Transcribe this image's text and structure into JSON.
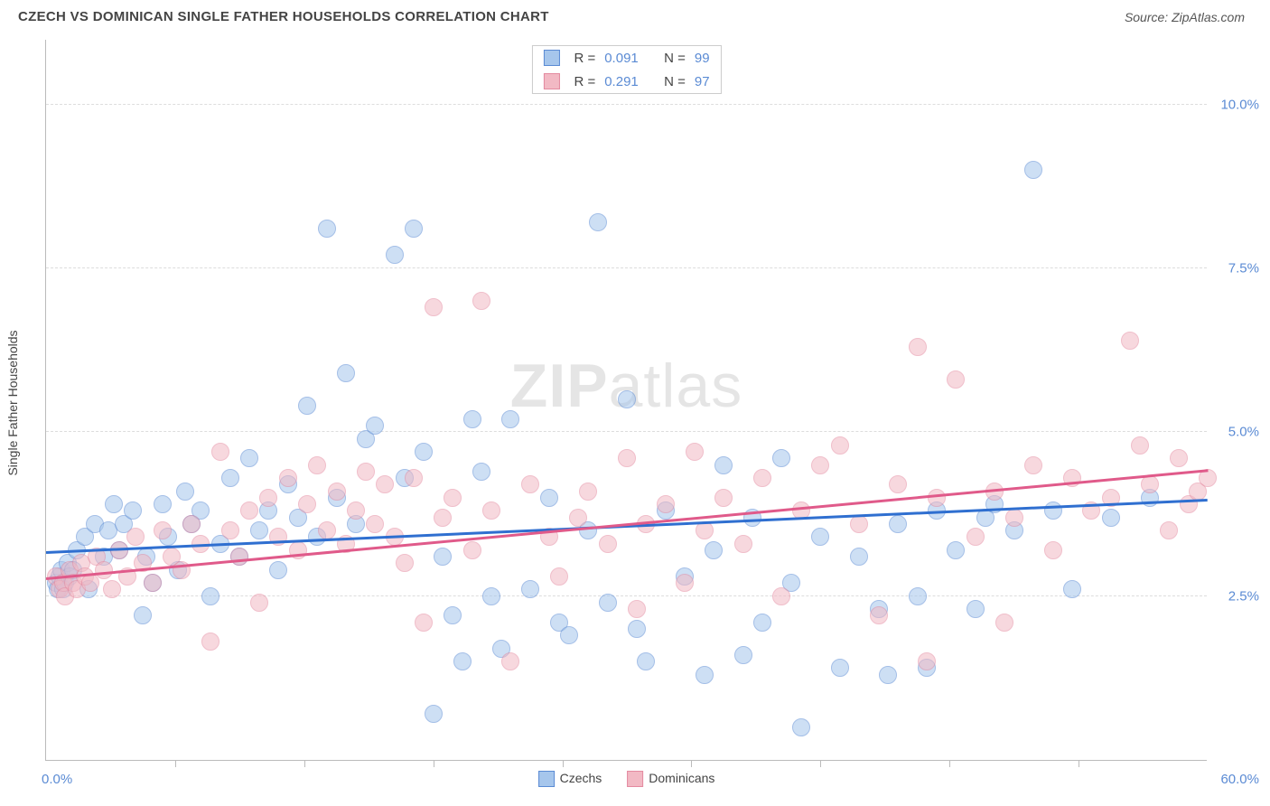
{
  "title": "CZECH VS DOMINICAN SINGLE FATHER HOUSEHOLDS CORRELATION CHART",
  "source": "Source: ZipAtlas.com",
  "ylabel": "Single Father Households",
  "watermark_bold": "ZIP",
  "watermark_rest": "atlas",
  "chart": {
    "type": "scatter",
    "xlim": [
      0,
      60
    ],
    "ylim": [
      0,
      11
    ],
    "x_min_label": "0.0%",
    "x_max_label": "60.0%",
    "x_tick_positions": [
      6.67,
      13.33,
      20,
      26.67,
      33.33,
      40,
      46.67,
      53.33
    ],
    "y_gridlines": [
      {
        "value": 2.5,
        "label": "2.5%"
      },
      {
        "value": 5.0,
        "label": "5.0%"
      },
      {
        "value": 7.5,
        "label": "7.5%"
      },
      {
        "value": 10.0,
        "label": "10.0%"
      }
    ],
    "marker_radius": 10,
    "marker_opacity": 0.55,
    "background_color": "#ffffff",
    "grid_color": "#dddddd",
    "series": [
      {
        "name": "Czechs",
        "color_fill": "#a6c6ec",
        "color_stroke": "#5b8bd4",
        "trend_color": "#2f6fd0",
        "trend_start_y": 3.15,
        "trend_end_y": 3.95,
        "R": "0.091",
        "N": "99",
        "points": [
          [
            0.5,
            2.7
          ],
          [
            0.6,
            2.6
          ],
          [
            0.7,
            2.8
          ],
          [
            0.8,
            2.9
          ],
          [
            0.9,
            2.6
          ],
          [
            1.0,
            2.7
          ],
          [
            1.1,
            3.0
          ],
          [
            1.2,
            2.8
          ],
          [
            1.4,
            2.9
          ],
          [
            1.6,
            3.2
          ],
          [
            2.0,
            3.4
          ],
          [
            2.2,
            2.6
          ],
          [
            2.5,
            3.6
          ],
          [
            3.0,
            3.1
          ],
          [
            3.2,
            3.5
          ],
          [
            3.5,
            3.9
          ],
          [
            3.8,
            3.2
          ],
          [
            4.0,
            3.6
          ],
          [
            4.5,
            3.8
          ],
          [
            5.0,
            2.2
          ],
          [
            5.2,
            3.1
          ],
          [
            5.5,
            2.7
          ],
          [
            6.0,
            3.9
          ],
          [
            6.3,
            3.4
          ],
          [
            6.8,
            2.9
          ],
          [
            7.2,
            4.1
          ],
          [
            7.5,
            3.6
          ],
          [
            8.0,
            3.8
          ],
          [
            8.5,
            2.5
          ],
          [
            9.0,
            3.3
          ],
          [
            9.5,
            4.3
          ],
          [
            10.0,
            3.1
          ],
          [
            10.5,
            4.6
          ],
          [
            11.0,
            3.5
          ],
          [
            11.5,
            3.8
          ],
          [
            12.0,
            2.9
          ],
          [
            12.5,
            4.2
          ],
          [
            13.0,
            3.7
          ],
          [
            13.5,
            5.4
          ],
          [
            14.0,
            3.4
          ],
          [
            14.5,
            8.1
          ],
          [
            15.0,
            4.0
          ],
          [
            15.5,
            5.9
          ],
          [
            16.0,
            3.6
          ],
          [
            16.5,
            4.9
          ],
          [
            17.0,
            5.1
          ],
          [
            18.0,
            7.7
          ],
          [
            18.5,
            4.3
          ],
          [
            19.0,
            8.1
          ],
          [
            19.5,
            4.7
          ],
          [
            20.0,
            0.7
          ],
          [
            20.5,
            3.1
          ],
          [
            21.0,
            2.2
          ],
          [
            21.5,
            1.5
          ],
          [
            22.0,
            5.2
          ],
          [
            22.5,
            4.4
          ],
          [
            23.0,
            2.5
          ],
          [
            23.5,
            1.7
          ],
          [
            24.0,
            5.2
          ],
          [
            25.0,
            2.6
          ],
          [
            26.0,
            4.0
          ],
          [
            26.5,
            2.1
          ],
          [
            27.0,
            1.9
          ],
          [
            28.0,
            3.5
          ],
          [
            28.5,
            8.2
          ],
          [
            29.0,
            2.4
          ],
          [
            30.0,
            5.5
          ],
          [
            30.5,
            2.0
          ],
          [
            31.0,
            1.5
          ],
          [
            32.0,
            3.8
          ],
          [
            33.0,
            2.8
          ],
          [
            34.0,
            1.3
          ],
          [
            34.5,
            3.2
          ],
          [
            35.0,
            4.5
          ],
          [
            36.0,
            1.6
          ],
          [
            36.5,
            3.7
          ],
          [
            37.0,
            2.1
          ],
          [
            38.0,
            4.6
          ],
          [
            38.5,
            2.7
          ],
          [
            39.0,
            0.5
          ],
          [
            40.0,
            3.4
          ],
          [
            41.0,
            1.4
          ],
          [
            42.0,
            3.1
          ],
          [
            43.0,
            2.3
          ],
          [
            43.5,
            1.3
          ],
          [
            44.0,
            3.6
          ],
          [
            45.0,
            2.5
          ],
          [
            45.5,
            1.4
          ],
          [
            46.0,
            3.8
          ],
          [
            47.0,
            3.2
          ],
          [
            48.0,
            2.3
          ],
          [
            48.5,
            3.7
          ],
          [
            49.0,
            3.9
          ],
          [
            50.0,
            3.5
          ],
          [
            51.0,
            9.0
          ],
          [
            52.0,
            3.8
          ],
          [
            53.0,
            2.6
          ],
          [
            55.0,
            3.7
          ],
          [
            57.0,
            4.0
          ]
        ]
      },
      {
        "name": "Dominicans",
        "color_fill": "#f2b9c4",
        "color_stroke": "#e48aa0",
        "trend_color": "#e05a8a",
        "trend_start_y": 2.75,
        "trend_end_y": 4.4,
        "R": "0.291",
        "N": "97",
        "points": [
          [
            0.5,
            2.8
          ],
          [
            0.7,
            2.6
          ],
          [
            0.9,
            2.7
          ],
          [
            1.0,
            2.5
          ],
          [
            1.2,
            2.9
          ],
          [
            1.4,
            2.7
          ],
          [
            1.6,
            2.6
          ],
          [
            1.8,
            3.0
          ],
          [
            2.0,
            2.8
          ],
          [
            2.3,
            2.7
          ],
          [
            2.6,
            3.1
          ],
          [
            3.0,
            2.9
          ],
          [
            3.4,
            2.6
          ],
          [
            3.8,
            3.2
          ],
          [
            4.2,
            2.8
          ],
          [
            4.6,
            3.4
          ],
          [
            5.0,
            3.0
          ],
          [
            5.5,
            2.7
          ],
          [
            6.0,
            3.5
          ],
          [
            6.5,
            3.1
          ],
          [
            7.0,
            2.9
          ],
          [
            7.5,
            3.6
          ],
          [
            8.0,
            3.3
          ],
          [
            8.5,
            1.8
          ],
          [
            9.0,
            4.7
          ],
          [
            9.5,
            3.5
          ],
          [
            10.0,
            3.1
          ],
          [
            10.5,
            3.8
          ],
          [
            11.0,
            2.4
          ],
          [
            11.5,
            4.0
          ],
          [
            12.0,
            3.4
          ],
          [
            12.5,
            4.3
          ],
          [
            13.0,
            3.2
          ],
          [
            13.5,
            3.9
          ],
          [
            14.0,
            4.5
          ],
          [
            14.5,
            3.5
          ],
          [
            15.0,
            4.1
          ],
          [
            15.5,
            3.3
          ],
          [
            16.0,
            3.8
          ],
          [
            16.5,
            4.4
          ],
          [
            17.0,
            3.6
          ],
          [
            17.5,
            4.2
          ],
          [
            18.0,
            3.4
          ],
          [
            18.5,
            3.0
          ],
          [
            19.0,
            4.3
          ],
          [
            19.5,
            2.1
          ],
          [
            20.0,
            6.9
          ],
          [
            20.5,
            3.7
          ],
          [
            21.0,
            4.0
          ],
          [
            22.0,
            3.2
          ],
          [
            22.5,
            7.0
          ],
          [
            23.0,
            3.8
          ],
          [
            24.0,
            1.5
          ],
          [
            25.0,
            4.2
          ],
          [
            26.0,
            3.4
          ],
          [
            26.5,
            2.8
          ],
          [
            27.5,
            3.7
          ],
          [
            28.0,
            4.1
          ],
          [
            29.0,
            3.3
          ],
          [
            30.0,
            4.6
          ],
          [
            30.5,
            2.3
          ],
          [
            31.0,
            3.6
          ],
          [
            32.0,
            3.9
          ],
          [
            33.0,
            2.7
          ],
          [
            33.5,
            4.7
          ],
          [
            34.0,
            3.5
          ],
          [
            35.0,
            4.0
          ],
          [
            36.0,
            3.3
          ],
          [
            37.0,
            4.3
          ],
          [
            38.0,
            2.5
          ],
          [
            39.0,
            3.8
          ],
          [
            40.0,
            4.5
          ],
          [
            41.0,
            4.8
          ],
          [
            42.0,
            3.6
          ],
          [
            43.0,
            2.2
          ],
          [
            44.0,
            4.2
          ],
          [
            45.0,
            6.3
          ],
          [
            45.5,
            1.5
          ],
          [
            46.0,
            4.0
          ],
          [
            47.0,
            5.8
          ],
          [
            48.0,
            3.4
          ],
          [
            49.0,
            4.1
          ],
          [
            49.5,
            2.1
          ],
          [
            50.0,
            3.7
          ],
          [
            51.0,
            4.5
          ],
          [
            52.0,
            3.2
          ],
          [
            53.0,
            4.3
          ],
          [
            54.0,
            3.8
          ],
          [
            55.0,
            4.0
          ],
          [
            56.0,
            6.4
          ],
          [
            57.0,
            4.2
          ],
          [
            58.0,
            3.5
          ],
          [
            58.5,
            4.6
          ],
          [
            59.0,
            3.9
          ],
          [
            59.5,
            4.1
          ],
          [
            60.0,
            4.3
          ],
          [
            56.5,
            4.8
          ]
        ]
      }
    ]
  },
  "legend_top": {
    "rows": [
      {
        "swatch_fill": "#a6c6ec",
        "swatch_stroke": "#5b8bd4",
        "r_label": "R =",
        "r_val": "0.091",
        "n_label": "N =",
        "n_val": "99"
      },
      {
        "swatch_fill": "#f2b9c4",
        "swatch_stroke": "#e48aa0",
        "r_label": "R =",
        "r_val": "0.291",
        "n_label": "N =",
        "n_val": "97"
      }
    ]
  },
  "legend_bottom": [
    {
      "swatch_fill": "#a6c6ec",
      "swatch_stroke": "#5b8bd4",
      "label": "Czechs"
    },
    {
      "swatch_fill": "#f2b9c4",
      "swatch_stroke": "#e48aa0",
      "label": "Dominicans"
    }
  ]
}
